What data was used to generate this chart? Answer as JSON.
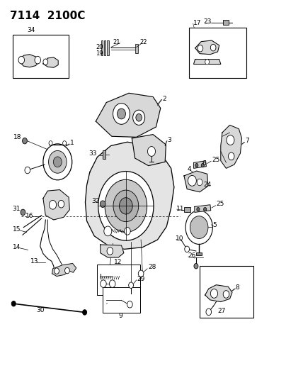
{
  "title": "7114  2100C",
  "bg_color": "#ffffff",
  "line_color": "#000000",
  "fig_width": 4.28,
  "fig_height": 5.33,
  "dpi": 100,
  "header": {
    "text": "7114  2100C",
    "fontsize": 11,
    "fontweight": "bold"
  }
}
